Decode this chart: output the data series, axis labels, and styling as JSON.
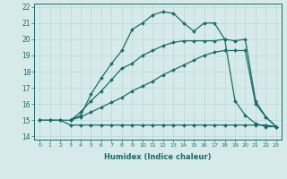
{
  "xlabel": "Humidex (Indice chaleur)",
  "bg_color": "#d6eaea",
  "grid_color": "#b8d8d8",
  "line_color": "#1a6b6b",
  "xlim": [
    -0.5,
    23.5
  ],
  "ylim": [
    13.8,
    22.2
  ],
  "xticks": [
    0,
    1,
    2,
    3,
    4,
    5,
    6,
    7,
    8,
    9,
    10,
    11,
    12,
    13,
    14,
    15,
    16,
    17,
    18,
    19,
    20,
    21,
    22,
    23
  ],
  "yticks": [
    14,
    15,
    16,
    17,
    18,
    19,
    20,
    21,
    22
  ],
  "series": [
    {
      "x": [
        0,
        1,
        2,
        3,
        4,
        5,
        6,
        7,
        8,
        9,
        10,
        11,
        12,
        13,
        14,
        15,
        16,
        17,
        18,
        19,
        20,
        21,
        22,
        23
      ],
      "y": [
        15.0,
        15.0,
        15.0,
        14.7,
        14.7,
        14.7,
        14.7,
        14.7,
        14.7,
        14.7,
        14.7,
        14.7,
        14.7,
        14.7,
        14.7,
        14.7,
        14.7,
        14.7,
        14.7,
        14.7,
        14.7,
        14.7,
        14.7,
        14.6
      ]
    },
    {
      "x": [
        3,
        4,
        5,
        6,
        7,
        8,
        9,
        10,
        11,
        12,
        13,
        14,
        15,
        16,
        17,
        18,
        19,
        20,
        21,
        22,
        23
      ],
      "y": [
        15.0,
        15.2,
        15.5,
        15.8,
        16.1,
        16.4,
        16.8,
        17.1,
        17.4,
        17.8,
        18.1,
        18.4,
        18.7,
        19.0,
        19.2,
        19.3,
        19.3,
        19.3,
        16.0,
        15.2,
        14.6
      ]
    },
    {
      "x": [
        3,
        4,
        5,
        6,
        7,
        8,
        9,
        10,
        11,
        12,
        13,
        14,
        15,
        16,
        17,
        18,
        19,
        20,
        21,
        22,
        23
      ],
      "y": [
        15.0,
        15.5,
        16.2,
        16.8,
        17.5,
        18.2,
        18.5,
        19.0,
        19.3,
        19.6,
        19.8,
        19.9,
        19.9,
        19.9,
        19.9,
        20.0,
        19.9,
        20.0,
        16.2,
        15.2,
        14.6
      ]
    },
    {
      "x": [
        0,
        1,
        2,
        3,
        4,
        5,
        6,
        7,
        8,
        9,
        10,
        11,
        12,
        13,
        14,
        15,
        16,
        17,
        18,
        19,
        20,
        21,
        22,
        23
      ],
      "y": [
        15.0,
        15.0,
        15.0,
        15.0,
        15.3,
        16.6,
        17.6,
        18.5,
        19.3,
        20.6,
        21.0,
        21.5,
        21.7,
        21.6,
        21.0,
        20.5,
        21.0,
        21.0,
        20.0,
        16.2,
        15.3,
        14.8,
        14.6,
        14.6
      ]
    }
  ]
}
